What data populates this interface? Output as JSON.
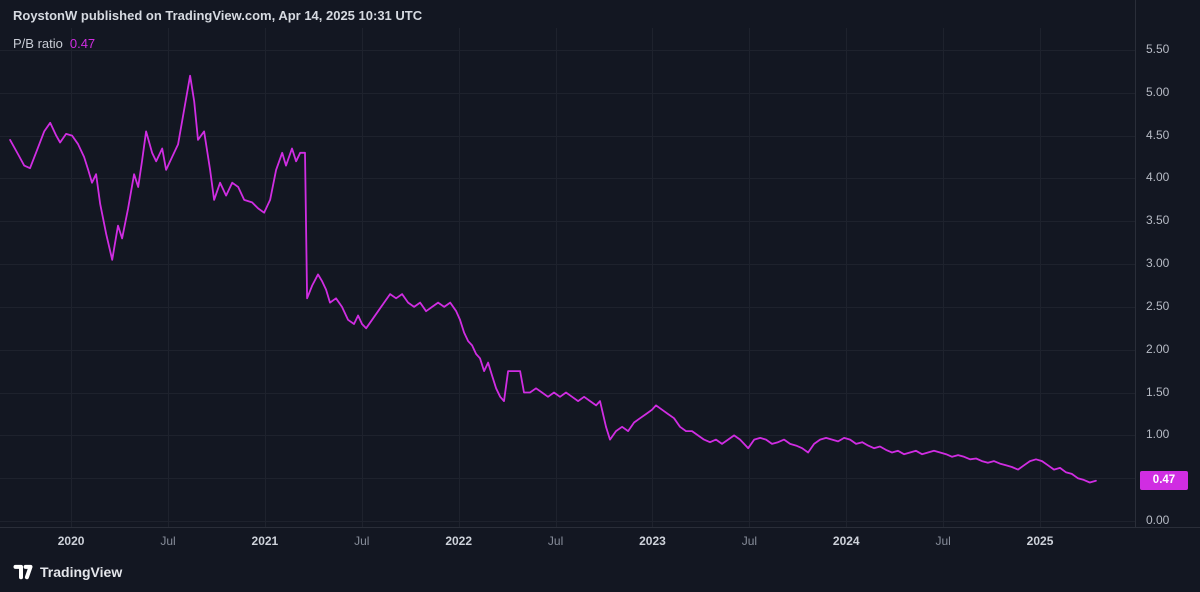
{
  "header": {
    "text": "RoystonW published on TradingView.com, Apr 14, 2025 10:31 UTC"
  },
  "legend": {
    "label": "P/B ratio",
    "value": "0.47"
  },
  "footer": {
    "brand": "TradingView"
  },
  "colors": {
    "background": "#131722",
    "grid": "#1e222d",
    "axis_border": "#2a2e39",
    "accent": "#d02de2",
    "badge_text": "#ffffff"
  },
  "chart_data": {
    "type": "line",
    "title": "P/B ratio",
    "xlabel": "",
    "ylabel": "",
    "legend_position": "top-left",
    "grid": true,
    "xlim": [
      2019.633,
      2025.49
    ],
    "ylim": [
      0,
      5.5
    ],
    "last_value": 0.47,
    "last_label": "0.47",
    "y_grid": [
      0.0,
      0.5,
      1.0,
      1.5,
      2.0,
      2.5,
      3.0,
      3.5,
      4.0,
      4.5,
      5.0,
      5.5
    ],
    "y_ticks": [
      {
        "value": 5.5,
        "label": "5.50"
      },
      {
        "value": 5.0,
        "label": "5.00"
      },
      {
        "value": 4.5,
        "label": "4.50"
      },
      {
        "value": 4.0,
        "label": "4.00"
      },
      {
        "value": 3.5,
        "label": "3.50"
      },
      {
        "value": 3.0,
        "label": "3.00"
      },
      {
        "value": 2.5,
        "label": "2.50"
      },
      {
        "value": 2.0,
        "label": "2.00"
      },
      {
        "value": 1.5,
        "label": "1.50"
      },
      {
        "value": 1.0,
        "label": "1.00"
      },
      {
        "value": 0.0,
        "label": "0.00"
      }
    ],
    "x_ticks": [
      {
        "value": 2020.0,
        "label": "2020",
        "major": true
      },
      {
        "value": 2020.5,
        "label": "Jul",
        "major": false
      },
      {
        "value": 2021.0,
        "label": "2021",
        "major": true
      },
      {
        "value": 2021.5,
        "label": "Jul",
        "major": false
      },
      {
        "value": 2022.0,
        "label": "2022",
        "major": true
      },
      {
        "value": 2022.5,
        "label": "Jul",
        "major": false
      },
      {
        "value": 2023.0,
        "label": "2023",
        "major": true
      },
      {
        "value": 2023.5,
        "label": "Jul",
        "major": false
      },
      {
        "value": 2024.0,
        "label": "2024",
        "major": true
      },
      {
        "value": 2024.5,
        "label": "Jul",
        "major": false
      },
      {
        "value": 2025.0,
        "label": "2025",
        "major": true
      }
    ],
    "series": [
      {
        "name": "P/B ratio",
        "points": [
          [
            2019.685,
            4.45
          ],
          [
            2019.727,
            4.28
          ],
          [
            2019.758,
            4.15
          ],
          [
            2019.788,
            4.12
          ],
          [
            2019.819,
            4.3
          ],
          [
            2019.861,
            4.55
          ],
          [
            2019.892,
            4.65
          ],
          [
            2019.923,
            4.5
          ],
          [
            2019.943,
            4.42
          ],
          [
            2019.974,
            4.52
          ],
          [
            2020.005,
            4.5
          ],
          [
            2020.036,
            4.4
          ],
          [
            2020.067,
            4.25
          ],
          [
            2020.088,
            4.1
          ],
          [
            2020.108,
            3.95
          ],
          [
            2020.129,
            4.05
          ],
          [
            2020.15,
            3.7
          ],
          [
            2020.181,
            3.35
          ],
          [
            2020.212,
            3.05
          ],
          [
            2020.242,
            3.45
          ],
          [
            2020.263,
            3.3
          ],
          [
            2020.294,
            3.65
          ],
          [
            2020.325,
            4.05
          ],
          [
            2020.346,
            3.9
          ],
          [
            2020.366,
            4.2
          ],
          [
            2020.387,
            4.55
          ],
          [
            2020.418,
            4.3
          ],
          [
            2020.439,
            4.2
          ],
          [
            2020.47,
            4.35
          ],
          [
            2020.49,
            4.1
          ],
          [
            2020.521,
            4.25
          ],
          [
            2020.552,
            4.4
          ],
          [
            2020.583,
            4.8
          ],
          [
            2020.614,
            5.2
          ],
          [
            2020.635,
            4.9
          ],
          [
            2020.655,
            4.45
          ],
          [
            2020.686,
            4.55
          ],
          [
            2020.717,
            4.1
          ],
          [
            2020.738,
            3.75
          ],
          [
            2020.769,
            3.95
          ],
          [
            2020.8,
            3.8
          ],
          [
            2020.831,
            3.95
          ],
          [
            2020.862,
            3.9
          ],
          [
            2020.893,
            3.75
          ],
          [
            2020.934,
            3.72
          ],
          [
            2020.965,
            3.65
          ],
          [
            2020.996,
            3.6
          ],
          [
            2021.027,
            3.75
          ],
          [
            2021.058,
            4.1
          ],
          [
            2021.089,
            4.3
          ],
          [
            2021.109,
            4.15
          ],
          [
            2021.14,
            4.35
          ],
          [
            2021.161,
            4.2
          ],
          [
            2021.182,
            4.3
          ],
          [
            2021.207,
            4.3
          ],
          [
            2021.218,
            2.6
          ],
          [
            2021.244,
            2.75
          ],
          [
            2021.274,
            2.88
          ],
          [
            2021.295,
            2.8
          ],
          [
            2021.316,
            2.7
          ],
          [
            2021.336,
            2.55
          ],
          [
            2021.367,
            2.6
          ],
          [
            2021.398,
            2.5
          ],
          [
            2021.429,
            2.35
          ],
          [
            2021.46,
            2.3
          ],
          [
            2021.481,
            2.4
          ],
          [
            2021.501,
            2.3
          ],
          [
            2021.522,
            2.25
          ],
          [
            2021.553,
            2.35
          ],
          [
            2021.584,
            2.45
          ],
          [
            2021.615,
            2.55
          ],
          [
            2021.646,
            2.65
          ],
          [
            2021.677,
            2.6
          ],
          [
            2021.708,
            2.65
          ],
          [
            2021.739,
            2.55
          ],
          [
            2021.77,
            2.5
          ],
          [
            2021.801,
            2.55
          ],
          [
            2021.832,
            2.45
          ],
          [
            2021.863,
            2.5
          ],
          [
            2021.894,
            2.55
          ],
          [
            2021.925,
            2.5
          ],
          [
            2021.956,
            2.55
          ],
          [
            2021.987,
            2.45
          ],
          [
            2022.007,
            2.35
          ],
          [
            2022.028,
            2.2
          ],
          [
            2022.049,
            2.1
          ],
          [
            2022.069,
            2.05
          ],
          [
            2022.09,
            1.95
          ],
          [
            2022.11,
            1.9
          ],
          [
            2022.131,
            1.75
          ],
          [
            2022.152,
            1.85
          ],
          [
            2022.172,
            1.7
          ],
          [
            2022.193,
            1.55
          ],
          [
            2022.214,
            1.45
          ],
          [
            2022.234,
            1.4
          ],
          [
            2022.255,
            1.75
          ],
          [
            2022.286,
            1.75
          ],
          [
            2022.317,
            1.75
          ],
          [
            2022.337,
            1.5
          ],
          [
            2022.368,
            1.5
          ],
          [
            2022.399,
            1.55
          ],
          [
            2022.43,
            1.5
          ],
          [
            2022.461,
            1.45
          ],
          [
            2022.492,
            1.5
          ],
          [
            2022.523,
            1.45
          ],
          [
            2022.554,
            1.5
          ],
          [
            2022.585,
            1.45
          ],
          [
            2022.616,
            1.4
          ],
          [
            2022.647,
            1.45
          ],
          [
            2022.678,
            1.4
          ],
          [
            2022.709,
            1.35
          ],
          [
            2022.729,
            1.4
          ],
          [
            2022.76,
            1.1
          ],
          [
            2022.781,
            0.95
          ],
          [
            2022.812,
            1.05
          ],
          [
            2022.843,
            1.1
          ],
          [
            2022.874,
            1.05
          ],
          [
            2022.905,
            1.15
          ],
          [
            2022.936,
            1.2
          ],
          [
            2022.967,
            1.25
          ],
          [
            2022.998,
            1.3
          ],
          [
            2023.018,
            1.35
          ],
          [
            2023.049,
            1.3
          ],
          [
            2023.08,
            1.25
          ],
          [
            2023.111,
            1.2
          ],
          [
            2023.142,
            1.1
          ],
          [
            2023.173,
            1.05
          ],
          [
            2023.204,
            1.05
          ],
          [
            2023.235,
            1.0
          ],
          [
            2023.266,
            0.95
          ],
          [
            2023.297,
            0.92
          ],
          [
            2023.328,
            0.95
          ],
          [
            2023.359,
            0.9
          ],
          [
            2023.39,
            0.95
          ],
          [
            2023.421,
            1.0
          ],
          [
            2023.452,
            0.95
          ],
          [
            2023.494,
            0.85
          ],
          [
            2023.525,
            0.95
          ],
          [
            2023.556,
            0.97
          ],
          [
            2023.586,
            0.95
          ],
          [
            2023.617,
            0.9
          ],
          [
            2023.648,
            0.92
          ],
          [
            2023.679,
            0.95
          ],
          [
            2023.71,
            0.9
          ],
          [
            2023.741,
            0.88
          ],
          [
            2023.772,
            0.85
          ],
          [
            2023.803,
            0.8
          ],
          [
            2023.834,
            0.9
          ],
          [
            2023.865,
            0.95
          ],
          [
            2023.896,
            0.97
          ],
          [
            2023.927,
            0.95
          ],
          [
            2023.958,
            0.93
          ],
          [
            2023.989,
            0.97
          ],
          [
            2024.02,
            0.95
          ],
          [
            2024.051,
            0.9
          ],
          [
            2024.082,
            0.92
          ],
          [
            2024.113,
            0.88
          ],
          [
            2024.143,
            0.85
          ],
          [
            2024.174,
            0.87
          ],
          [
            2024.205,
            0.83
          ],
          [
            2024.236,
            0.8
          ],
          [
            2024.267,
            0.82
          ],
          [
            2024.298,
            0.78
          ],
          [
            2024.329,
            0.8
          ],
          [
            2024.36,
            0.82
          ],
          [
            2024.391,
            0.78
          ],
          [
            2024.422,
            0.8
          ],
          [
            2024.453,
            0.82
          ],
          [
            2024.484,
            0.8
          ],
          [
            2024.515,
            0.78
          ],
          [
            2024.546,
            0.75
          ],
          [
            2024.577,
            0.77
          ],
          [
            2024.608,
            0.75
          ],
          [
            2024.639,
            0.72
          ],
          [
            2024.67,
            0.73
          ],
          [
            2024.7,
            0.7
          ],
          [
            2024.731,
            0.68
          ],
          [
            2024.762,
            0.7
          ],
          [
            2024.793,
            0.67
          ],
          [
            2024.824,
            0.65
          ],
          [
            2024.855,
            0.63
          ],
          [
            2024.886,
            0.6
          ],
          [
            2024.917,
            0.65
          ],
          [
            2024.948,
            0.7
          ],
          [
            2024.979,
            0.72
          ],
          [
            2025.01,
            0.7
          ],
          [
            2025.041,
            0.65
          ],
          [
            2025.072,
            0.6
          ],
          [
            2025.103,
            0.62
          ],
          [
            2025.133,
            0.57
          ],
          [
            2025.164,
            0.55
          ],
          [
            2025.195,
            0.5
          ],
          [
            2025.226,
            0.48
          ],
          [
            2025.257,
            0.45
          ],
          [
            2025.288,
            0.47
          ]
        ]
      }
    ]
  }
}
